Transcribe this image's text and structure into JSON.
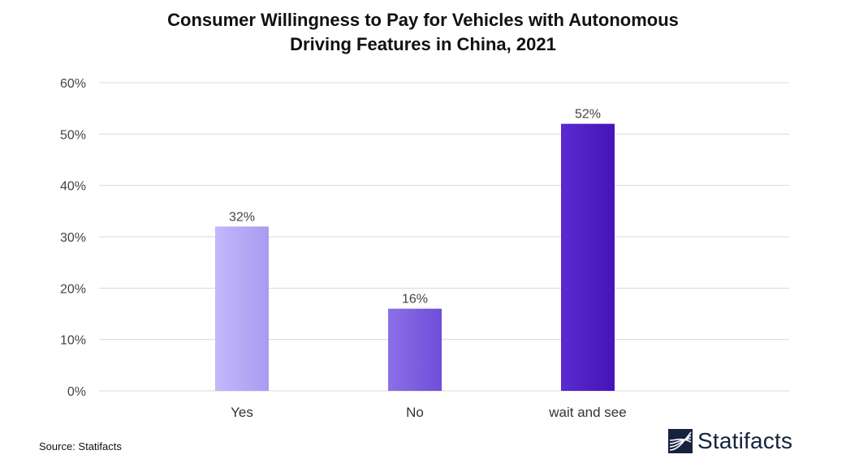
{
  "chart_data": {
    "type": "bar",
    "title_lines": [
      "Consumer Willingness to Pay for Vehicles with Autonomous",
      "Driving Features in China, 2021"
    ],
    "categories": [
      "Yes",
      "No",
      "wait and see"
    ],
    "values": [
      32,
      16,
      52
    ],
    "data_labels": [
      "32%",
      "16%",
      "52%"
    ],
    "ylim": [
      0,
      60
    ],
    "yticks": [
      0,
      10,
      20,
      30,
      40,
      50,
      60
    ],
    "ytick_labels": [
      "0%",
      "10%",
      "20%",
      "30%",
      "40%",
      "50%",
      "60%"
    ],
    "grid": true,
    "legend": "none",
    "bar_colors": [
      [
        "#c2b8fb",
        "#a99bf2"
      ],
      [
        "#8b70e6",
        "#6f4ed9"
      ],
      [
        "#5a2bd0",
        "#4414b8"
      ]
    ],
    "grid_color": "#d9d9d9"
  },
  "footer": {
    "source": "Source: Statifacts",
    "brand": "Statifacts",
    "brand_icon": "statifacts-logo-icon",
    "brand_color": "#16223f"
  }
}
